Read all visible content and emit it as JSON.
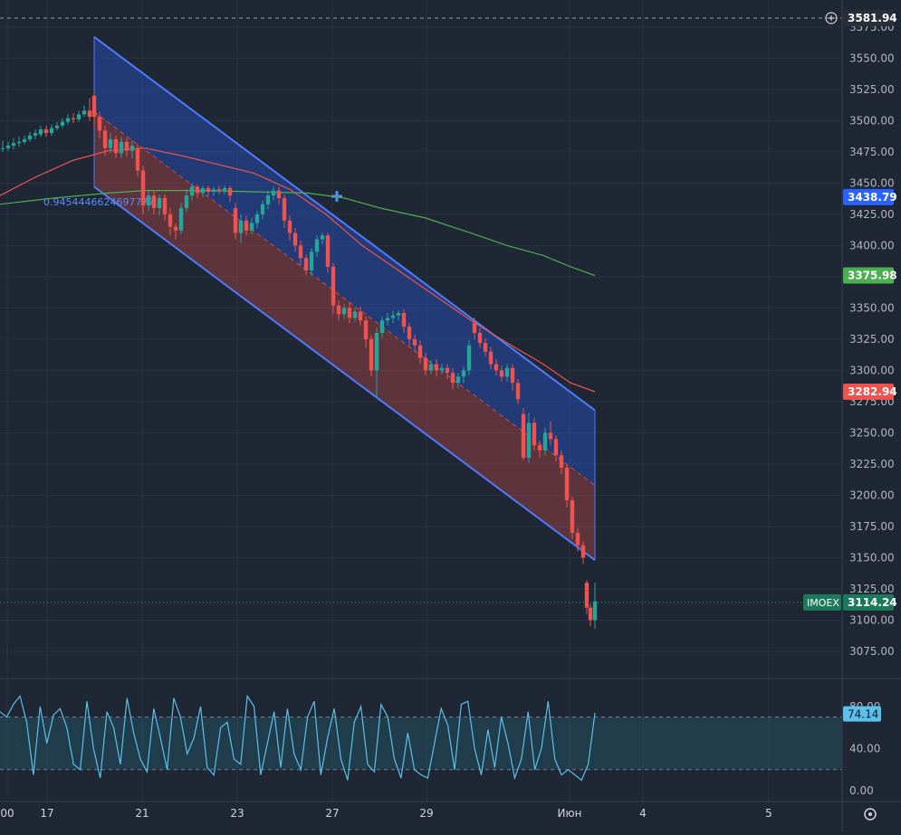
{
  "chart_data": {
    "type": "candlestick",
    "symbol": "IMOEX",
    "price_axis": {
      "ticks": [
        "3075.00",
        "3100.00",
        "3125.00",
        "3150.00",
        "3175.00",
        "3200.00",
        "3225.00",
        "3250.00",
        "3275.00",
        "3300.00",
        "3325.00",
        "3350.00",
        "3375.00",
        "3400.00",
        "3425.00",
        "3450.00",
        "3475.00",
        "3500.00",
        "3525.00",
        "3550.00",
        "3575.00"
      ],
      "ylim": [
        3060,
        3585
      ]
    },
    "time_axis": {
      "ticks": [
        "00",
        "17",
        "21",
        "23",
        "27",
        "29",
        "Июн",
        "4",
        "5"
      ]
    },
    "price_labels": [
      {
        "value": "3581.94",
        "color": "#2a2e39",
        "text_color": "#ffffff"
      },
      {
        "value": "3438.79",
        "color": "#2962ff",
        "text_color": "#ffffff"
      },
      {
        "value": "3375.98",
        "color": "#4caf50",
        "text_color": "#ffffff"
      },
      {
        "value": "3282.94",
        "color": "#ef5350",
        "text_color": "#ffffff"
      },
      {
        "value": "3114.24",
        "color": "#1b7a5a",
        "text_color": "#ffffff"
      }
    ],
    "symbol_tag": "IMOEX",
    "channel_label": "0.9454446624697777",
    "moving_averages": [
      {
        "color": "#ef5350",
        "points": [
          [
            0,
            3440
          ],
          [
            40,
            3455
          ],
          [
            80,
            3468
          ],
          [
            120,
            3476
          ],
          [
            160,
            3478
          ],
          [
            200,
            3472
          ],
          [
            240,
            3465
          ],
          [
            280,
            3458
          ],
          [
            320,
            3445
          ],
          [
            360,
            3425
          ],
          [
            400,
            3400
          ],
          [
            440,
            3380
          ],
          [
            480,
            3360
          ],
          [
            520,
            3340
          ],
          [
            560,
            3322
          ],
          [
            600,
            3305
          ],
          [
            630,
            3290
          ],
          [
            657,
            3282.94
          ]
        ]
      },
      {
        "color": "#4caf50",
        "points": [
          [
            0,
            3433
          ],
          [
            60,
            3438
          ],
          [
            120,
            3442
          ],
          [
            160,
            3444
          ],
          [
            220,
            3444
          ],
          [
            280,
            3443
          ],
          [
            340,
            3442
          ],
          [
            380,
            3438
          ],
          [
            420,
            3430
          ],
          [
            470,
            3422
          ],
          [
            520,
            3410
          ],
          [
            560,
            3400
          ],
          [
            600,
            3392
          ],
          [
            630,
            3383
          ],
          [
            657,
            3375.98
          ]
        ]
      }
    ],
    "candles": [
      [
        3,
        3478,
        3478,
        3484,
        3475
      ],
      [
        9,
        3478,
        3480,
        3483,
        3476
      ],
      [
        15,
        3480,
        3482,
        3486,
        3477
      ],
      [
        21,
        3482,
        3483,
        3487,
        3479
      ],
      [
        27,
        3483,
        3485,
        3488,
        3481
      ],
      [
        33,
        3485,
        3488,
        3491,
        3483
      ],
      [
        39,
        3488,
        3490,
        3493,
        3485
      ],
      [
        45,
        3489,
        3493,
        3496,
        3487
      ],
      [
        51,
        3493,
        3490,
        3496,
        3487
      ],
      [
        57,
        3490,
        3494,
        3497,
        3488
      ],
      [
        63,
        3494,
        3496,
        3499,
        3492
      ],
      [
        69,
        3496,
        3499,
        3502,
        3494
      ],
      [
        75,
        3499,
        3502,
        3505,
        3497
      ],
      [
        81,
        3502,
        3501,
        3506,
        3498
      ],
      [
        87,
        3501,
        3505,
        3508,
        3499
      ],
      [
        93,
        3505,
        3508,
        3512,
        3503
      ],
      [
        99,
        3508,
        3503,
        3518,
        3500
      ],
      [
        104,
        3520,
        3503,
        3522,
        3495
      ],
      [
        110,
        3503,
        3492,
        3507,
        3486
      ],
      [
        116,
        3492,
        3478,
        3496,
        3472
      ],
      [
        122,
        3478,
        3485,
        3490,
        3474
      ],
      [
        128,
        3485,
        3474,
        3488,
        3470
      ],
      [
        134,
        3474,
        3483,
        3487,
        3470
      ],
      [
        140,
        3483,
        3476,
        3486,
        3471
      ],
      [
        146,
        3476,
        3480,
        3484,
        3470
      ],
      [
        152,
        3478,
        3460,
        3481,
        3455
      ],
      [
        158,
        3460,
        3432,
        3464,
        3425
      ],
      [
        164,
        3432,
        3440,
        3445,
        3428
      ],
      [
        170,
        3440,
        3430,
        3444,
        3425
      ],
      [
        176,
        3430,
        3438,
        3441,
        3424
      ],
      [
        182,
        3438,
        3425,
        3441,
        3420
      ],
      [
        188,
        3425,
        3415,
        3430,
        3408
      ],
      [
        194,
        3415,
        3412,
        3418,
        3405
      ],
      [
        200,
        3412,
        3430,
        3434,
        3409
      ],
      [
        206,
        3430,
        3440,
        3445,
        3427
      ],
      [
        212,
        3440,
        3447,
        3450,
        3436
      ],
      [
        218,
        3447,
        3442,
        3449,
        3438
      ],
      [
        224,
        3442,
        3446,
        3448,
        3439
      ],
      [
        230,
        3446,
        3443,
        3448,
        3440
      ],
      [
        236,
        3443,
        3445,
        3447,
        3440
      ],
      [
        242,
        3445,
        3444,
        3448,
        3441
      ],
      [
        248,
        3444,
        3446,
        3448,
        3441
      ],
      [
        254,
        3446,
        3440,
        3448,
        3435
      ],
      [
        260,
        3430,
        3410,
        3434,
        3405
      ],
      [
        266,
        3410,
        3420,
        3425,
        3402
      ],
      [
        272,
        3420,
        3412,
        3424,
        3408
      ],
      [
        278,
        3412,
        3418,
        3422,
        3409
      ],
      [
        284,
        3418,
        3425,
        3428,
        3414
      ],
      [
        290,
        3425,
        3433,
        3436,
        3421
      ],
      [
        296,
        3433,
        3440,
        3444,
        3429
      ],
      [
        302,
        3440,
        3444,
        3447,
        3436
      ],
      [
        308,
        3444,
        3438,
        3447,
        3433
      ],
      [
        314,
        3438,
        3420,
        3441,
        3414
      ],
      [
        320,
        3420,
        3410,
        3424,
        3404
      ],
      [
        326,
        3410,
        3400,
        3414,
        3395
      ],
      [
        332,
        3400,
        3390,
        3404,
        3384
      ],
      [
        338,
        3390,
        3380,
        3393,
        3376
      ],
      [
        344,
        3380,
        3395,
        3398,
        3376
      ],
      [
        350,
        3395,
        3405,
        3408,
        3391
      ],
      [
        356,
        3405,
        3408,
        3410,
        3401
      ],
      [
        362,
        3408,
        3383,
        3410,
        3378
      ],
      [
        368,
        3383,
        3352,
        3386,
        3345
      ],
      [
        374,
        3352,
        3345,
        3356,
        3340
      ],
      [
        380,
        3345,
        3350,
        3353,
        3341
      ],
      [
        386,
        3350,
        3342,
        3354,
        3338
      ],
      [
        392,
        3342,
        3347,
        3350,
        3339
      ],
      [
        398,
        3347,
        3340,
        3351,
        3336
      ],
      [
        404,
        3340,
        3325,
        3343,
        3318
      ],
      [
        410,
        3325,
        3300,
        3328,
        3295
      ],
      [
        416,
        3300,
        3330,
        3334,
        3278
      ],
      [
        422,
        3330,
        3340,
        3343,
        3326
      ],
      [
        428,
        3340,
        3342,
        3346,
        3336
      ],
      [
        434,
        3342,
        3344,
        3348,
        3338
      ],
      [
        440,
        3344,
        3346,
        3348,
        3340
      ],
      [
        446,
        3346,
        3335,
        3349,
        3330
      ],
      [
        452,
        3335,
        3325,
        3338,
        3320
      ],
      [
        458,
        3325,
        3320,
        3329,
        3315
      ],
      [
        464,
        3320,
        3310,
        3324,
        3305
      ],
      [
        470,
        3310,
        3300,
        3314,
        3296
      ],
      [
        476,
        3300,
        3305,
        3308,
        3297
      ],
      [
        482,
        3305,
        3300,
        3309,
        3295
      ],
      [
        488,
        3300,
        3302,
        3305,
        3297
      ],
      [
        494,
        3302,
        3298,
        3305,
        3293
      ],
      [
        500,
        3298,
        3290,
        3302,
        3285
      ],
      [
        506,
        3290,
        3295,
        3298,
        3286
      ],
      [
        512,
        3295,
        3300,
        3303,
        3290
      ],
      [
        518,
        3300,
        3320,
        3324,
        3296
      ],
      [
        524,
        3338,
        3330,
        3342,
        3325
      ],
      [
        530,
        3330,
        3322,
        3334,
        3318
      ],
      [
        536,
        3322,
        3315,
        3326,
        3311
      ],
      [
        542,
        3315,
        3305,
        3319,
        3301
      ],
      [
        548,
        3305,
        3300,
        3309,
        3296
      ],
      [
        554,
        3300,
        3295,
        3304,
        3291
      ],
      [
        560,
        3295,
        3302,
        3305,
        3291
      ],
      [
        566,
        3302,
        3290,
        3305,
        3284
      ],
      [
        572,
        3290,
        3277,
        3293,
        3273
      ],
      [
        578,
        3265,
        3230,
        3270,
        3228
      ],
      [
        584,
        3230,
        3258,
        3266,
        3226
      ],
      [
        590,
        3258,
        3240,
        3262,
        3236
      ],
      [
        596,
        3240,
        3236,
        3244,
        3230
      ],
      [
        602,
        3236,
        3250,
        3254,
        3232
      ],
      [
        608,
        3250,
        3245,
        3259,
        3240
      ],
      [
        614,
        3245,
        3232,
        3248,
        3227
      ],
      [
        620,
        3232,
        3222,
        3236,
        3217
      ],
      [
        626,
        3222,
        3196,
        3225,
        3190
      ],
      [
        632,
        3196,
        3170,
        3199,
        3165
      ],
      [
        638,
        3170,
        3160,
        3174,
        3155
      ],
      [
        644,
        3160,
        3150,
        3163,
        3145
      ],
      [
        648,
        3130,
        3110,
        3132,
        3105
      ],
      [
        652,
        3110,
        3100,
        3113,
        3095
      ],
      [
        657,
        3100,
        3115,
        3130,
        3093
      ]
    ],
    "channel": {
      "upper": [
        [
          104,
          3567
        ],
        [
          657,
          3268
        ]
      ],
      "mid": [
        [
          104,
          3507
        ],
        [
          657,
          3208
        ]
      ],
      "lower": [
        [
          104,
          3447
        ],
        [
          657,
          3148
        ]
      ]
    },
    "oscillator": {
      "ticks": [
        "0.00",
        "40.00",
        "80.00"
      ],
      "last_label": "74.14",
      "band": [
        20,
        70
      ]
    }
  }
}
